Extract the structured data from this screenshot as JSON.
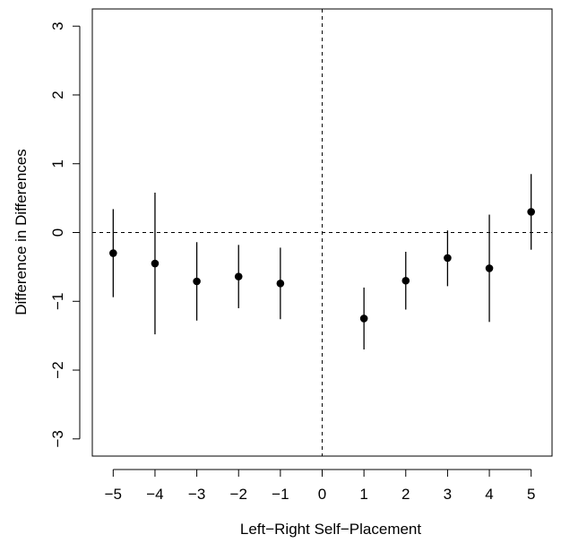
{
  "chart_data": {
    "type": "scatter",
    "title": "",
    "xlabel": "Left−Right Self−Placement",
    "ylabel": "Difference in Differences",
    "xlim": [
      -5.5,
      5.5
    ],
    "ylim": [
      -3.25,
      3.25
    ],
    "x_ticks": [
      -5,
      -4,
      -3,
      -2,
      -1,
      0,
      1,
      2,
      3,
      4,
      5
    ],
    "x_tick_labels": [
      "−5",
      "−4",
      "−3",
      "−2",
      "−1",
      "0",
      "1",
      "2",
      "3",
      "4",
      "5"
    ],
    "y_ticks": [
      -3,
      -2,
      -1,
      0,
      1,
      2,
      3
    ],
    "y_tick_labels": [
      "−3",
      "−2",
      "−1",
      "0",
      "1",
      "2",
      "3"
    ],
    "reference_lines": {
      "horizontal_at": 0,
      "vertical_at": 0,
      "style": "dashed"
    },
    "points": [
      {
        "x": -5,
        "y": -0.3,
        "lower": -0.94,
        "upper": 0.34
      },
      {
        "x": -4,
        "y": -0.45,
        "lower": -1.48,
        "upper": 0.58
      },
      {
        "x": -3,
        "y": -0.71,
        "lower": -1.28,
        "upper": -0.14
      },
      {
        "x": -2,
        "y": -0.64,
        "lower": -1.1,
        "upper": -0.18
      },
      {
        "x": -1,
        "y": -0.74,
        "lower": -1.26,
        "upper": -0.22
      },
      {
        "x": 1,
        "y": -1.25,
        "lower": -1.7,
        "upper": -0.8
      },
      {
        "x": 2,
        "y": -0.7,
        "lower": -1.12,
        "upper": -0.28
      },
      {
        "x": 3,
        "y": -0.37,
        "lower": -0.78,
        "upper": 0.03
      },
      {
        "x": 4,
        "y": -0.52,
        "lower": -1.3,
        "upper": 0.26
      },
      {
        "x": 5,
        "y": 0.3,
        "lower": -0.25,
        "upper": 0.85
      }
    ],
    "grid": false,
    "legend": "none",
    "colors": {
      "points": "#000000",
      "lines": "#000000"
    }
  }
}
